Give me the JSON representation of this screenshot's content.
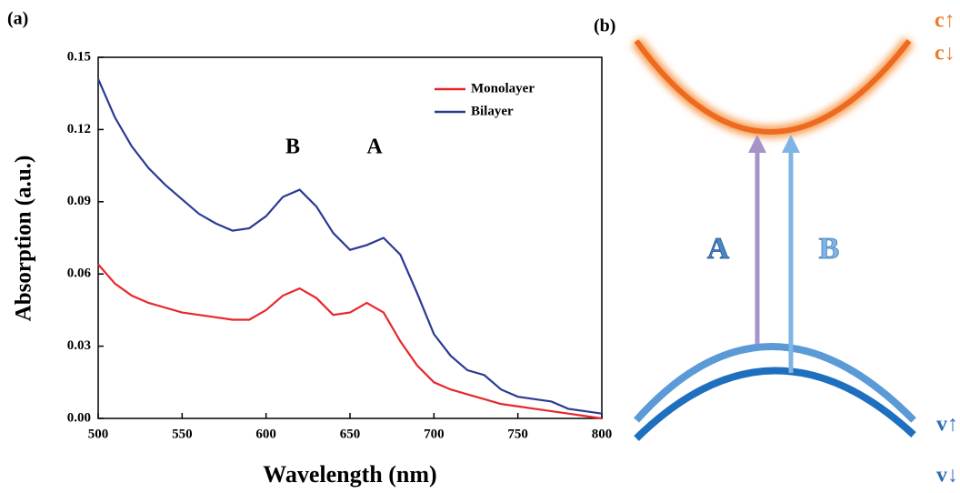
{
  "chart_data": {
    "type": "line",
    "panel_label": "(a)",
    "x_label": "Wavelength (nm)",
    "y_label": "Absorption (a.u.)",
    "x": [
      500,
      510,
      520,
      530,
      540,
      550,
      560,
      570,
      580,
      590,
      600,
      610,
      620,
      630,
      640,
      650,
      660,
      670,
      680,
      690,
      700,
      710,
      720,
      730,
      740,
      750,
      760,
      770,
      780,
      790,
      800
    ],
    "series": [
      {
        "name": "Monolayer",
        "color": "#e8262a",
        "values": [
          0.064,
          0.056,
          0.051,
          0.048,
          0.046,
          0.044,
          0.043,
          0.042,
          0.041,
          0.041,
          0.045,
          0.051,
          0.054,
          0.05,
          0.043,
          0.044,
          0.048,
          0.044,
          0.032,
          0.022,
          0.015,
          0.012,
          0.01,
          0.008,
          0.006,
          0.005,
          0.004,
          0.003,
          0.002,
          0.001,
          0.0
        ]
      },
      {
        "name": "Bilayer",
        "color": "#2b3a93",
        "values": [
          0.141,
          0.125,
          0.113,
          0.104,
          0.097,
          0.091,
          0.085,
          0.081,
          0.078,
          0.079,
          0.084,
          0.092,
          0.095,
          0.088,
          0.077,
          0.07,
          0.072,
          0.075,
          0.068,
          0.052,
          0.035,
          0.026,
          0.02,
          0.018,
          0.012,
          0.009,
          0.008,
          0.007,
          0.004,
          0.003,
          0.002
        ]
      }
    ],
    "annotations": [
      "B",
      "A"
    ],
    "xlim": [
      500,
      800
    ],
    "xticks": [
      500,
      550,
      600,
      650,
      700,
      750,
      800
    ],
    "ylim": [
      0,
      0.15
    ],
    "yticks": [
      {
        "value": 0,
        "label": "0.00"
      },
      0.03,
      0.06,
      0.09,
      0.12,
      0.15
    ],
    "grid": false,
    "legend": "upper right"
  },
  "diagram": {
    "panel_label": "(b)",
    "transitions": [
      "A",
      "B"
    ],
    "conduction_bands": [
      "c↑",
      "c↓"
    ],
    "valence_bands": [
      "v↑",
      "v↓"
    ]
  }
}
